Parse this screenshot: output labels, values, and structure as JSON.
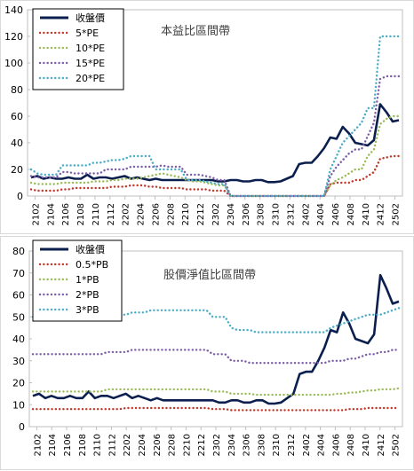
{
  "chart_data": [
    {
      "type": "line",
      "title": "本益比區間帶",
      "ylim": [
        0,
        140
      ],
      "yticks": [
        0,
        20,
        40,
        60,
        80,
        100,
        120,
        140
      ],
      "xtick_labels": [
        "2102",
        "2104",
        "2106",
        "2108",
        "2110",
        "2112",
        "2202",
        "2204",
        "2206",
        "2208",
        "2210",
        "2212",
        "2302",
        "2304",
        "2306",
        "2308",
        "2310",
        "2312",
        "2402",
        "2404",
        "2406",
        "2408",
        "2410",
        "2412",
        "2502"
      ],
      "legend_position": "top-left",
      "series": [
        {
          "name": "收盤價",
          "style": "solid",
          "color": "#0b1f4f",
          "values": [
            14,
            15,
            13,
            14,
            13,
            13,
            14,
            13,
            13,
            16,
            13,
            14,
            14,
            13,
            14,
            15,
            13,
            14,
            13,
            12,
            13,
            12,
            12,
            12,
            12,
            12,
            12,
            12,
            12,
            12,
            11,
            11,
            12,
            12,
            11,
            11,
            12,
            12,
            10.5,
            10.5,
            11,
            13,
            15,
            24,
            25,
            25,
            30,
            36,
            44,
            43,
            52,
            47,
            40,
            39,
            38,
            42,
            69,
            63,
            56,
            57
          ]
        },
        {
          "name": "5*PE",
          "style": "dotted",
          "color": "#c0392b",
          "values": [
            5,
            4,
            4,
            4,
            4,
            5,
            5,
            6,
            6,
            6,
            6,
            6,
            6,
            7,
            7,
            7,
            8,
            8,
            8,
            7,
            7,
            6,
            6,
            6,
            6,
            5,
            5,
            5,
            5,
            4,
            4,
            4,
            0,
            0,
            0,
            0,
            0,
            0,
            0,
            0,
            0,
            0,
            0,
            0,
            0,
            0,
            0,
            0,
            9,
            10,
            10,
            10,
            12,
            12,
            15,
            18,
            28,
            29,
            30,
            30
          ]
        },
        {
          "name": "10*PE",
          "style": "dotted",
          "color": "#9bbb59",
          "values": [
            10,
            9,
            9,
            9,
            9,
            10,
            10,
            10,
            10,
            10,
            11,
            11,
            11,
            12,
            12,
            13,
            13,
            13,
            14,
            15,
            16,
            17,
            16,
            15,
            14,
            12,
            11,
            11,
            10,
            9,
            8,
            8,
            0,
            0,
            0,
            0,
            0,
            0,
            0,
            0,
            0,
            0,
            0,
            0,
            0,
            0,
            0,
            0,
            8,
            12,
            14,
            17,
            20,
            20,
            30,
            35,
            54,
            58,
            60,
            60
          ]
        },
        {
          "name": "15*PE",
          "style": "dotted",
          "color": "#7b5ea7",
          "values": [
            15,
            14,
            14,
            14,
            14,
            18,
            18,
            17,
            17,
            17,
            17,
            17,
            20,
            20,
            20,
            20,
            22,
            22,
            22,
            22,
            22,
            23,
            22,
            22,
            22,
            16,
            16,
            16,
            15,
            14,
            12,
            12,
            0,
            0,
            0,
            0,
            0,
            0,
            0,
            0,
            0,
            0,
            0,
            0,
            0,
            0,
            0,
            0,
            15,
            22,
            27,
            32,
            35,
            35,
            45,
            55,
            88,
            90,
            90,
            90
          ]
        },
        {
          "name": "20*PE",
          "style": "dotted",
          "color": "#4bacc6",
          "values": [
            20,
            17,
            16,
            16,
            16,
            23,
            23,
            23,
            23,
            23,
            25,
            25,
            26,
            27,
            27,
            28,
            30,
            30,
            30,
            30,
            20,
            20,
            20,
            20,
            20,
            12,
            12,
            12,
            11,
            10,
            9,
            9,
            0,
            0,
            0,
            0,
            0,
            0,
            0,
            0,
            0,
            0,
            0,
            0,
            0,
            0,
            0,
            0,
            20,
            30,
            40,
            45,
            50,
            55,
            66,
            66,
            120,
            120,
            120,
            120
          ]
        }
      ]
    },
    {
      "type": "line",
      "title": "股價淨值比區間帶",
      "ylim": [
        0,
        80
      ],
      "yticks": [
        0,
        10,
        20,
        30,
        40,
        50,
        60,
        70,
        80
      ],
      "xtick_labels": [
        "2102",
        "2104",
        "2106",
        "2108",
        "2110",
        "2112",
        "2202",
        "2204",
        "2206",
        "2208",
        "2210",
        "2212",
        "2302",
        "2304",
        "2306",
        "2308",
        "2310",
        "2312",
        "2402",
        "2404",
        "2406",
        "2408",
        "2410",
        "2412",
        "2502"
      ],
      "legend_position": "top-left",
      "series": [
        {
          "name": "收盤價",
          "style": "solid",
          "color": "#0b1f4f",
          "values": [
            14,
            15,
            13,
            14,
            13,
            13,
            14,
            13,
            13,
            16,
            13,
            14,
            14,
            13,
            14,
            15,
            13,
            14,
            13,
            12,
            13,
            12,
            12,
            12,
            12,
            12,
            12,
            12,
            12,
            12,
            11,
            11,
            12,
            12,
            11,
            11,
            12,
            12,
            10.5,
            10.5,
            11,
            13,
            15,
            24,
            25,
            25,
            30,
            36,
            44,
            43,
            52,
            47,
            40,
            39,
            38,
            42,
            69,
            63,
            56,
            57
          ]
        },
        {
          "name": "0.5*PB",
          "style": "dotted",
          "color": "#c0392b",
          "values": [
            8,
            8,
            8,
            8,
            8,
            8,
            8,
            8,
            8,
            8,
            8,
            8,
            8,
            8,
            8,
            8.5,
            8.5,
            8.5,
            8.5,
            8.5,
            8.5,
            8.5,
            8.5,
            8.5,
            8.5,
            8.5,
            8.5,
            8.5,
            8.5,
            8,
            8,
            8,
            7.5,
            7.5,
            7.5,
            7.5,
            7.5,
            7.5,
            7.5,
            7.5,
            7.5,
            7.5,
            7.5,
            7.5,
            7.5,
            7.5,
            7.5,
            7.5,
            7.5,
            7.5,
            7.5,
            8,
            8,
            8,
            8.5,
            8.5,
            8.5,
            8.5,
            8.5,
            8.5
          ]
        },
        {
          "name": "1*PB",
          "style": "dotted",
          "color": "#9bbb59",
          "values": [
            16,
            16,
            16,
            16,
            16,
            16,
            16,
            16,
            16,
            16,
            16,
            16,
            17,
            17,
            17,
            17,
            17,
            17,
            17,
            17,
            17,
            17,
            17,
            17,
            17,
            17,
            17,
            17,
            17,
            16,
            16,
            16,
            15,
            15,
            15,
            15,
            14.5,
            14.5,
            14.5,
            14.5,
            14.5,
            14.5,
            14.5,
            14.5,
            14.5,
            14.5,
            14.5,
            14.5,
            14.5,
            15,
            15,
            15.5,
            15.5,
            16,
            16.5,
            16.5,
            17,
            17,
            17,
            17.5
          ]
        },
        {
          "name": "2*PB",
          "style": "dotted",
          "color": "#7b5ea7",
          "values": [
            33,
            33,
            33,
            33,
            33,
            33,
            33,
            33,
            33,
            33,
            33,
            33,
            34,
            34,
            34,
            34,
            35,
            35,
            35,
            35,
            35,
            35,
            35,
            35,
            35,
            35,
            35,
            35,
            35,
            33,
            33,
            33,
            30,
            30,
            30,
            29,
            29,
            29,
            29,
            29,
            29,
            29,
            29,
            29,
            29,
            29,
            29,
            29,
            30,
            30,
            30,
            31,
            31,
            32,
            33,
            33,
            34,
            34,
            35,
            35
          ]
        },
        {
          "name": "3*PB",
          "style": "dotted",
          "color": "#4bacc6",
          "values": [
            50,
            50,
            50,
            50,
            50,
            50,
            50,
            50,
            50,
            50,
            50,
            50,
            51,
            51,
            51,
            51,
            52,
            52,
            52,
            53,
            53,
            53,
            53,
            53,
            53,
            53,
            53,
            53,
            53,
            50,
            50,
            50,
            45,
            44,
            44,
            44,
            43,
            43,
            43,
            43,
            43,
            43,
            43,
            43,
            43,
            43,
            43,
            43,
            45,
            46,
            47,
            48,
            49,
            50,
            51,
            51,
            51,
            52,
            53,
            54
          ]
        }
      ]
    }
  ]
}
